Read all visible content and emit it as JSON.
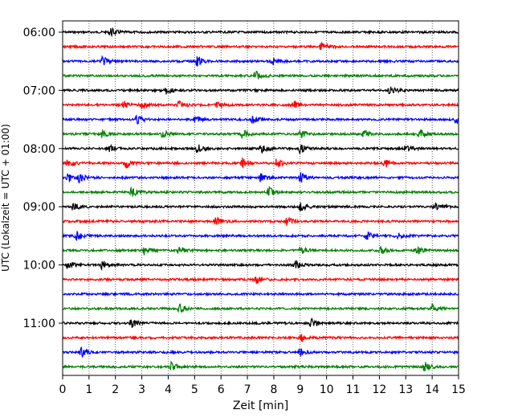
{
  "chart_data": {
    "type": "line",
    "title": "",
    "xlabel": "Zeit  [min]",
    "ylabel": "UTC (Lokalzeit = UTC + 01:00)",
    "xlim": [
      0,
      15
    ],
    "x_ticks": [
      0,
      1,
      2,
      3,
      4,
      5,
      6,
      7,
      8,
      9,
      10,
      11,
      12,
      13,
      14,
      15
    ],
    "y_tick_labels": [
      "06:00",
      "07:00",
      "08:00",
      "09:00",
      "10:00",
      "11:00"
    ],
    "rows_per_hour": 4,
    "minutes_per_row": 15,
    "grid_x": true,
    "trace_colors": [
      "#000000",
      "#ff0000",
      "#0000ff",
      "#008000"
    ],
    "traces": [
      {
        "start": "06:00",
        "color": "#000000",
        "events": [
          1.8
        ]
      },
      {
        "start": "06:15",
        "color": "#ff0000",
        "events": [
          9.8
        ]
      },
      {
        "start": "06:30",
        "color": "#0000ff",
        "events": [
          1.5,
          5.1,
          7.9
        ]
      },
      {
        "start": "06:45",
        "color": "#008000",
        "events": [
          7.3
        ]
      },
      {
        "start": "07:00",
        "color": "#000000",
        "events": [
          3.9,
          12.4
        ]
      },
      {
        "start": "07:15",
        "color": "#ff0000",
        "events": [
          2.3,
          3.0,
          4.4,
          5.8,
          8.7
        ]
      },
      {
        "start": "07:30",
        "color": "#0000ff",
        "events": [
          2.8,
          5.0,
          7.2,
          14.9
        ]
      },
      {
        "start": "07:45",
        "color": "#008000",
        "events": [
          1.5,
          3.8,
          6.8,
          9.0,
          11.4,
          13.5
        ]
      },
      {
        "start": "08:00",
        "color": "#000000",
        "events": [
          1.7,
          5.1,
          7.5,
          9.0,
          13.0
        ]
      },
      {
        "start": "08:15",
        "color": "#ff0000",
        "events": [
          0.2,
          2.4,
          6.8,
          8.1,
          12.2
        ]
      },
      {
        "start": "08:30",
        "color": "#0000ff",
        "events": [
          0.2,
          0.6,
          7.5,
          9.0
        ]
      },
      {
        "start": "08:45",
        "color": "#008000",
        "events": [
          2.6,
          7.8
        ]
      },
      {
        "start": "09:00",
        "color": "#000000",
        "events": [
          0.4,
          9.0,
          14.1
        ]
      },
      {
        "start": "09:15",
        "color": "#ff0000",
        "events": [
          5.8,
          8.5
        ]
      },
      {
        "start": "09:30",
        "color": "#0000ff",
        "events": [
          0.5,
          11.5,
          12.6
        ]
      },
      {
        "start": "09:45",
        "color": "#008000",
        "events": [
          3.1,
          4.4,
          9.0,
          12.0,
          13.4
        ]
      },
      {
        "start": "10:00",
        "color": "#000000",
        "events": [
          0.2,
          1.5,
          8.8
        ]
      },
      {
        "start": "10:15",
        "color": "#ff0000",
        "events": [
          7.3
        ]
      },
      {
        "start": "10:30",
        "color": "#0000ff",
        "events": []
      },
      {
        "start": "10:45",
        "color": "#008000",
        "events": [
          4.4,
          14.0
        ]
      },
      {
        "start": "11:00",
        "color": "#000000",
        "events": [
          2.6,
          9.4
        ]
      },
      {
        "start": "11:15",
        "color": "#ff0000",
        "events": [
          9.0
        ]
      },
      {
        "start": "11:30",
        "color": "#0000ff",
        "events": [
          0.7,
          9.0
        ]
      },
      {
        "start": "11:45",
        "color": "#008000",
        "events": [
          4.1,
          13.7
        ]
      }
    ]
  }
}
